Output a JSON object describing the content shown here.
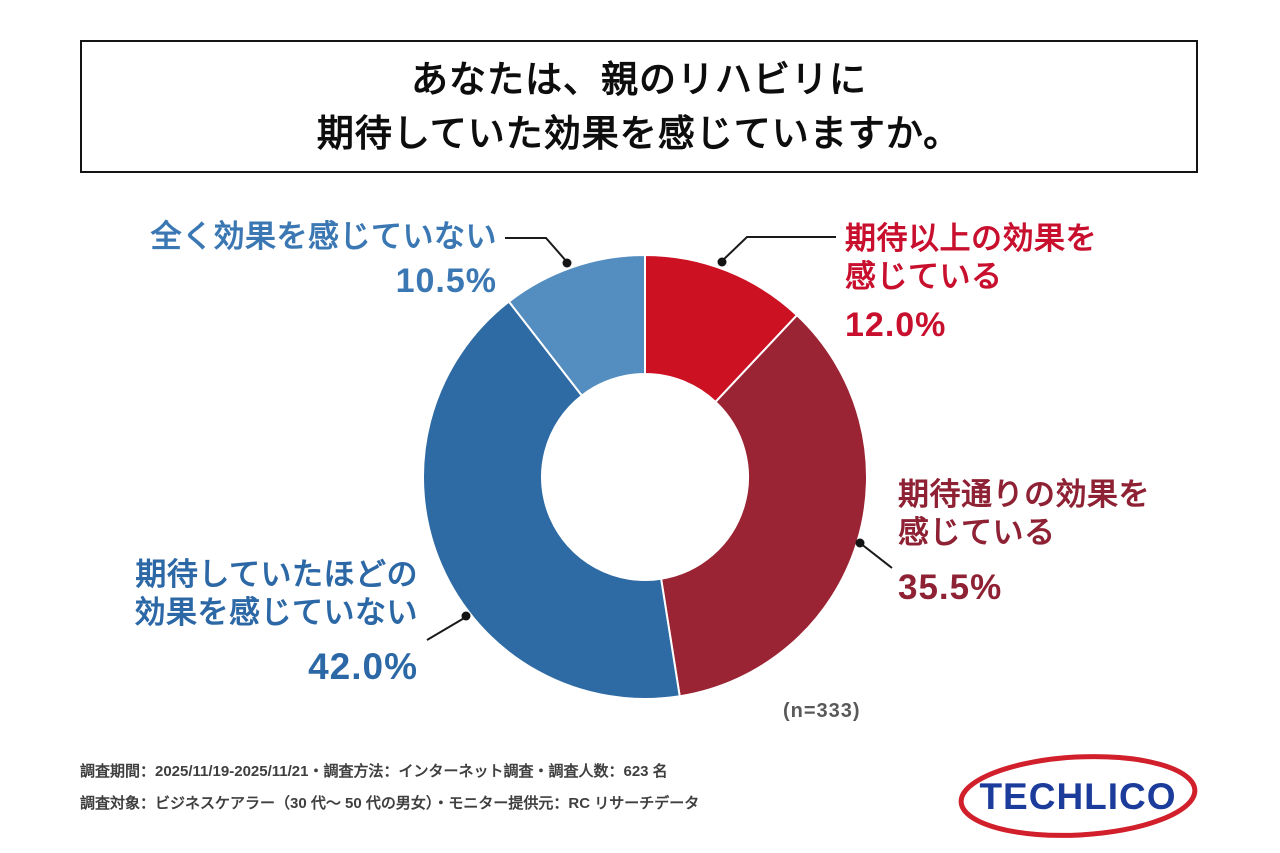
{
  "title": {
    "lines": [
      "あなたは、親のリハビリに",
      "期待していた効果を感じていますか。"
    ]
  },
  "chart_data": {
    "type": "pie",
    "variant": "donut",
    "start_angle_deg": -90,
    "direction": "clockwise",
    "sample_label": "(n=333)",
    "total_percent": 100,
    "segments": [
      {
        "label": "期待以上の効果を感じている",
        "label_lines": [
          "期待以上の効果を",
          "感じている"
        ],
        "value": 12.0,
        "value_label": "12.0%",
        "color": "#cc1122",
        "text_color": "#c8102e"
      },
      {
        "label": "期待通りの効果を感じている",
        "label_lines": [
          "期待通りの効果を",
          "感じている"
        ],
        "value": 35.5,
        "value_label": "35.5%",
        "color": "#9a2433",
        "text_color": "#8e2133"
      },
      {
        "label": "期待していたほどの効果を感じていない",
        "label_lines": [
          "期待していたほどの",
          "効果を感じていない"
        ],
        "value": 42.0,
        "value_label": "42.0%",
        "color": "#2e6aa3",
        "text_color": "#2c68a6"
      },
      {
        "label": "全く効果を感じていない",
        "label_lines": [
          "全く効果を感じていない"
        ],
        "value": 10.5,
        "value_label": "10.5%",
        "color": "#548dbf",
        "text_color": "#3b78b3"
      }
    ],
    "leader_color": "#1a1a1a",
    "hole_ratio": 0.465
  },
  "footer": {
    "line1": "調査期間：2025/11/19-2025/11/21・調査方法：インターネット調査・調査人数：623 名",
    "line2": "調査対象：ビジネスケアラー（30 代〜 50 代の男女）・モニター提供元：RC リサーチデータ"
  },
  "logo": {
    "text": "TECHLICO",
    "text_color": "#1c3c9c",
    "ring_color": "#d1202b"
  }
}
